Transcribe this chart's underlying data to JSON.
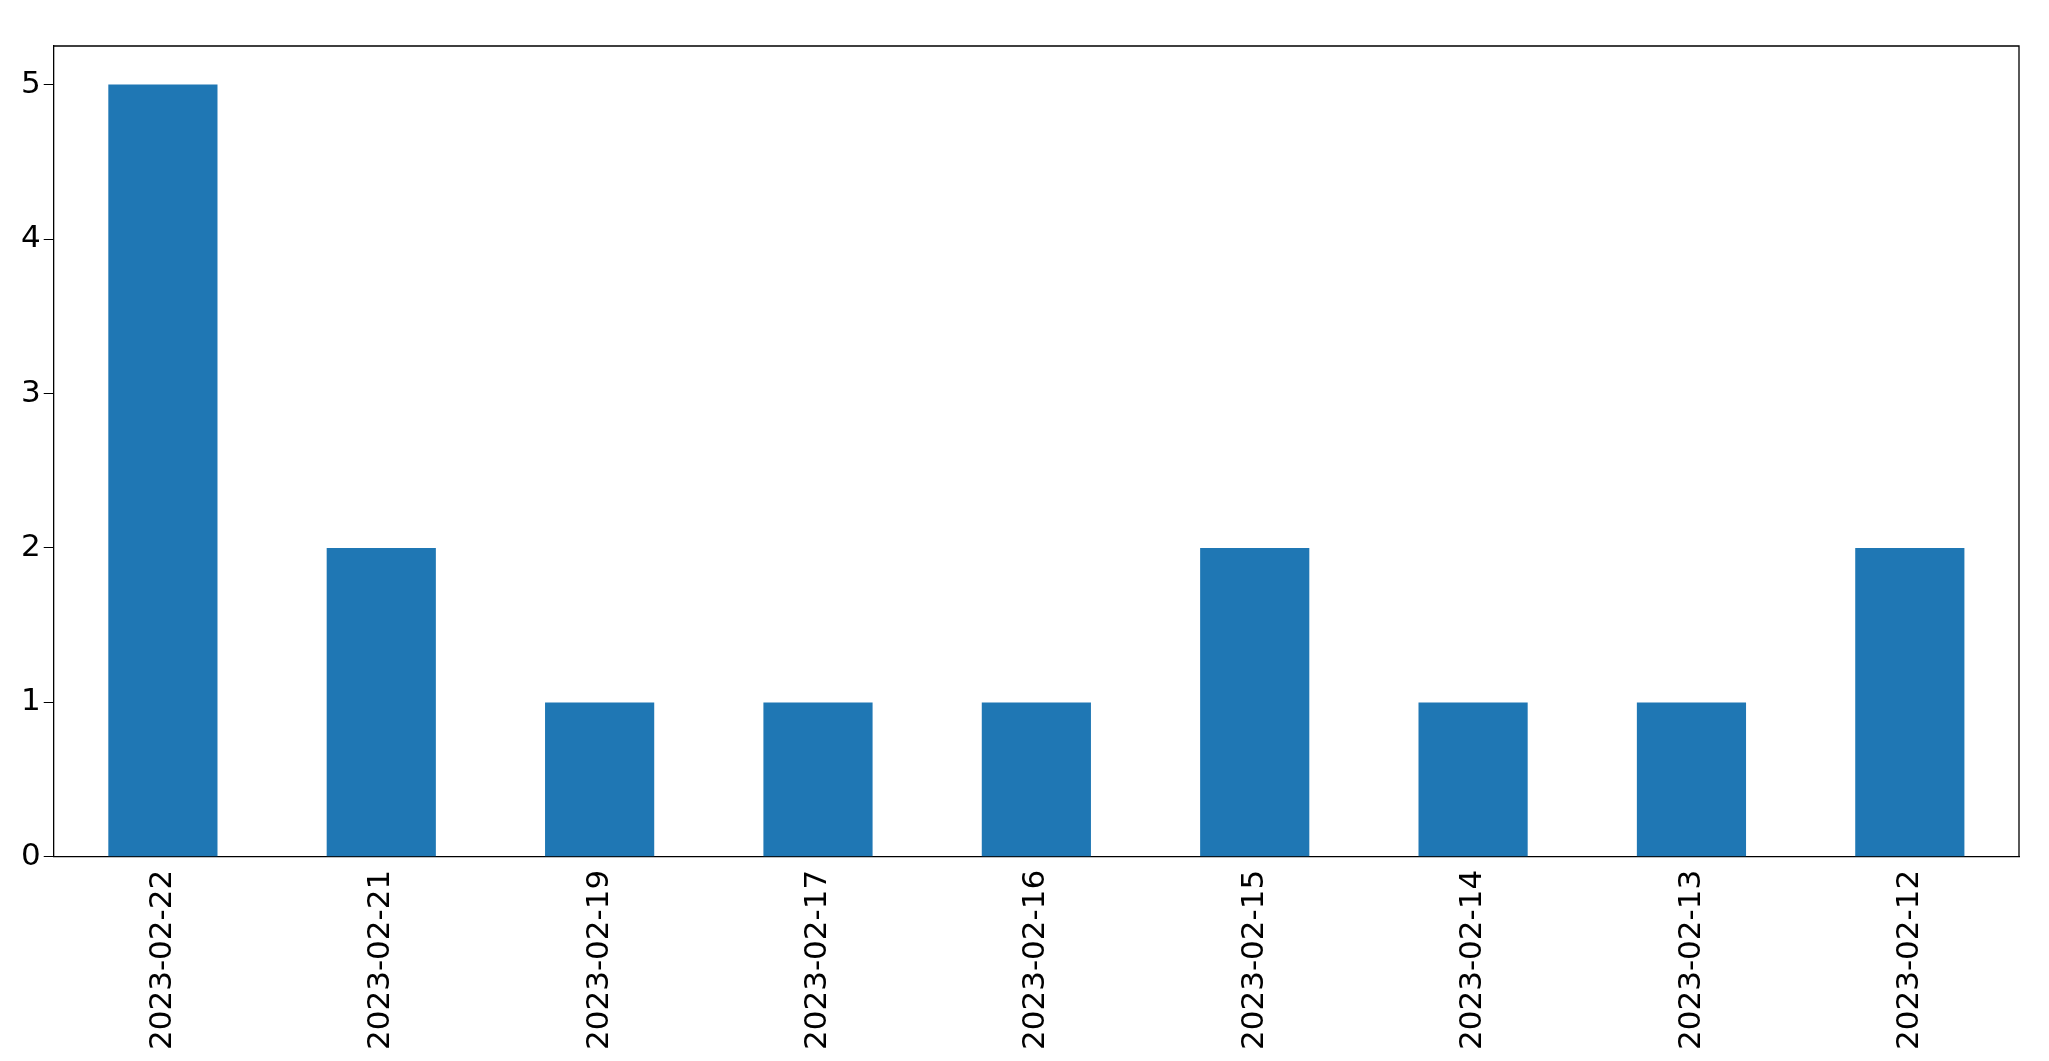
{
  "chart_data": {
    "type": "bar",
    "categories": [
      "2023-02-22",
      "2023-02-21",
      "2023-02-19",
      "2023-02-17",
      "2023-02-16",
      "2023-02-15",
      "2023-02-14",
      "2023-02-13",
      "2023-02-12"
    ],
    "values": [
      5,
      2,
      1,
      1,
      1,
      2,
      1,
      1,
      2
    ],
    "color": "#1f77b4",
    "ylim": [
      0,
      5.25
    ],
    "yticks": [
      0,
      1,
      2,
      3,
      4,
      5
    ],
    "grid": false,
    "legend": false
  }
}
